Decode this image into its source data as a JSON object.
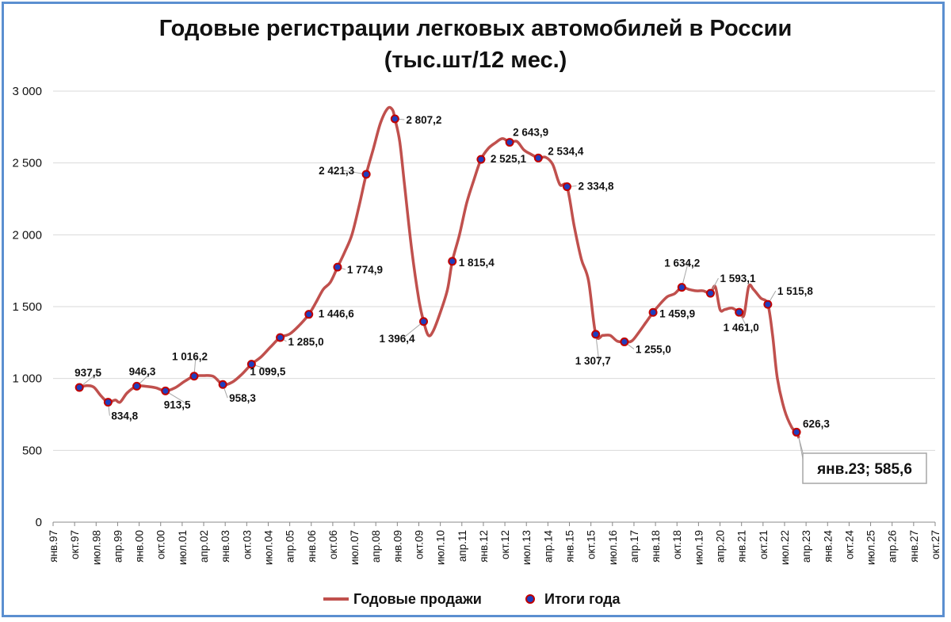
{
  "chart_data": {
    "type": "line",
    "title_line1": "Годовые регистрации легковых автомобилей в России",
    "title_line2": "(тыс.шт/12 мес.)",
    "ylim": [
      0,
      3000
    ],
    "yticks": [
      0,
      500,
      1000,
      1500,
      2000,
      2500,
      3000
    ],
    "ytick_labels": [
      "0",
      "500",
      "1 000",
      "1 500",
      "2 000",
      "2 500",
      "3 000"
    ],
    "x_range": [
      "1997-01",
      "2027-10"
    ],
    "xtick_labels": [
      "янв.97",
      "окт.97",
      "июл.98",
      "апр.99",
      "янв.00",
      "окт.00",
      "июл.01",
      "апр.02",
      "янв.03",
      "окт.03",
      "июл.04",
      "апр.05",
      "янв.06",
      "окт.06",
      "июл.07",
      "апр.08",
      "янв.09",
      "окт.09",
      "июл.10",
      "апр.11",
      "янв.12",
      "окт.12",
      "июл.13",
      "апр.14",
      "янв.15",
      "окт.15",
      "июл.16",
      "апр.17",
      "янв.18",
      "окт.18",
      "июл.19",
      "апр.20",
      "янв.21",
      "окт.21",
      "июл.22",
      "апр.23",
      "янв.24",
      "окт.24",
      "июл.25",
      "апр.26",
      "янв.27",
      "окт.27"
    ],
    "legend_position": "bottom",
    "series": [
      {
        "name": "Годовые продажи",
        "color": "#c0504d",
        "points": [
          [
            "1997-12",
            937.5
          ],
          [
            "1998-03",
            950
          ],
          [
            "1998-06",
            940
          ],
          [
            "1998-09",
            880
          ],
          [
            "1998-12",
            834.8
          ],
          [
            "1999-03",
            850
          ],
          [
            "1999-05",
            835
          ],
          [
            "1999-08",
            900
          ],
          [
            "1999-12",
            946.3
          ],
          [
            "2000-04",
            945
          ],
          [
            "2000-08",
            935
          ],
          [
            "2000-12",
            913.5
          ],
          [
            "2001-04",
            935
          ],
          [
            "2001-08",
            980
          ],
          [
            "2001-12",
            1016.2
          ],
          [
            "2002-04",
            1020
          ],
          [
            "2002-08",
            1015
          ],
          [
            "2002-12",
            958.3
          ],
          [
            "2003-04",
            975
          ],
          [
            "2003-08",
            1030
          ],
          [
            "2003-12",
            1099.5
          ],
          [
            "2004-04",
            1150
          ],
          [
            "2004-08",
            1220
          ],
          [
            "2004-12",
            1285.0
          ],
          [
            "2005-04",
            1310
          ],
          [
            "2005-08",
            1370
          ],
          [
            "2005-12",
            1446.6
          ],
          [
            "2006-03",
            1530
          ],
          [
            "2006-06",
            1620
          ],
          [
            "2006-09",
            1670
          ],
          [
            "2006-12",
            1774.9
          ],
          [
            "2007-03",
            1880
          ],
          [
            "2007-06",
            2000
          ],
          [
            "2007-09",
            2200
          ],
          [
            "2007-12",
            2421.3
          ],
          [
            "2008-03",
            2600
          ],
          [
            "2008-06",
            2780
          ],
          [
            "2008-09",
            2880
          ],
          [
            "2008-11",
            2870
          ],
          [
            "2008-12",
            2807.2
          ],
          [
            "2009-02",
            2650
          ],
          [
            "2009-04",
            2350
          ],
          [
            "2009-07",
            1900
          ],
          [
            "2009-10",
            1550
          ],
          [
            "2009-12",
            1396.4
          ],
          [
            "2010-02",
            1300
          ],
          [
            "2010-04",
            1330
          ],
          [
            "2010-07",
            1460
          ],
          [
            "2010-10",
            1620
          ],
          [
            "2010-12",
            1815.4
          ],
          [
            "2011-03",
            2000
          ],
          [
            "2011-06",
            2220
          ],
          [
            "2011-09",
            2380
          ],
          [
            "2011-12",
            2525.1
          ],
          [
            "2012-03",
            2600
          ],
          [
            "2012-06",
            2640
          ],
          [
            "2012-09",
            2670
          ],
          [
            "2012-12",
            2643.9
          ],
          [
            "2013-03",
            2650
          ],
          [
            "2013-06",
            2590
          ],
          [
            "2013-09",
            2560
          ],
          [
            "2013-12",
            2534.4
          ],
          [
            "2014-03",
            2540
          ],
          [
            "2014-06",
            2490
          ],
          [
            "2014-09",
            2350
          ],
          [
            "2014-12",
            2334.8
          ],
          [
            "2015-03",
            2060
          ],
          [
            "2015-06",
            1830
          ],
          [
            "2015-09",
            1680
          ],
          [
            "2015-12",
            1307.7
          ],
          [
            "2016-03",
            1300
          ],
          [
            "2016-06",
            1300
          ],
          [
            "2016-09",
            1260
          ],
          [
            "2016-12",
            1255.0
          ],
          [
            "2017-03",
            1260
          ],
          [
            "2017-06",
            1320
          ],
          [
            "2017-09",
            1390
          ],
          [
            "2017-12",
            1459.9
          ],
          [
            "2018-03",
            1520
          ],
          [
            "2018-06",
            1570
          ],
          [
            "2018-09",
            1590
          ],
          [
            "2018-12",
            1634.2
          ],
          [
            "2019-03",
            1620
          ],
          [
            "2019-06",
            1610
          ],
          [
            "2019-09",
            1610
          ],
          [
            "2019-12",
            1593.1
          ],
          [
            "2020-02",
            1640
          ],
          [
            "2020-04",
            1480
          ],
          [
            "2020-06",
            1480
          ],
          [
            "2020-09",
            1490
          ],
          [
            "2020-12",
            1461.0
          ],
          [
            "2021-02",
            1440
          ],
          [
            "2021-04",
            1640
          ],
          [
            "2021-06",
            1620
          ],
          [
            "2021-09",
            1560
          ],
          [
            "2021-12",
            1515.8
          ],
          [
            "2022-02",
            1300
          ],
          [
            "2022-04",
            1000
          ],
          [
            "2022-07",
            780
          ],
          [
            "2022-10",
            660
          ],
          [
            "2022-12",
            626.3
          ],
          [
            "2023-01",
            585.6
          ]
        ]
      },
      {
        "name": "Итоги года",
        "color": "#c00000",
        "marker_fill": "#1f3fbf",
        "points": [
          [
            "1997-12",
            937.5
          ],
          [
            "1998-12",
            834.8
          ],
          [
            "1999-12",
            946.3
          ],
          [
            "2000-12",
            913.5
          ],
          [
            "2001-12",
            1016.2
          ],
          [
            "2002-12",
            958.3
          ],
          [
            "2003-12",
            1099.5
          ],
          [
            "2004-12",
            1285.0
          ],
          [
            "2005-12",
            1446.6
          ],
          [
            "2006-12",
            1774.9
          ],
          [
            "2007-12",
            2421.3
          ],
          [
            "2008-12",
            2807.2
          ],
          [
            "2009-12",
            1396.4
          ],
          [
            "2010-12",
            1815.4
          ],
          [
            "2011-12",
            2525.1
          ],
          [
            "2012-12",
            2643.9
          ],
          [
            "2013-12",
            2534.4
          ],
          [
            "2014-12",
            2334.8
          ],
          [
            "2015-12",
            1307.7
          ],
          [
            "2016-12",
            1255.0
          ],
          [
            "2017-12",
            1459.9
          ],
          [
            "2018-12",
            1634.2
          ],
          [
            "2019-12",
            1593.1
          ],
          [
            "2020-12",
            1461.0
          ],
          [
            "2021-12",
            1515.8
          ],
          [
            "2022-12",
            626.3
          ]
        ],
        "labels": [
          "937,5",
          "834,8",
          "946,3",
          "913,5",
          "1 016,2",
          "958,3",
          "1 099,5",
          "1 285,0",
          "1 446,6",
          "1 774,9",
          "2 421,3",
          "2 807,2",
          "1 396,4",
          "1 815,4",
          "2 525,1",
          "2 643,9",
          "2 534,4",
          "2 334,8",
          "1 307,7",
          "1 255,0",
          "1 459,9",
          "1 634,2",
          "1 593,1",
          "1 461,0",
          "1 515,8",
          "626,3"
        ]
      }
    ],
    "callout": {
      "date": "2023-01",
      "value": 585.6,
      "text": "янв.23;  585,6"
    }
  }
}
